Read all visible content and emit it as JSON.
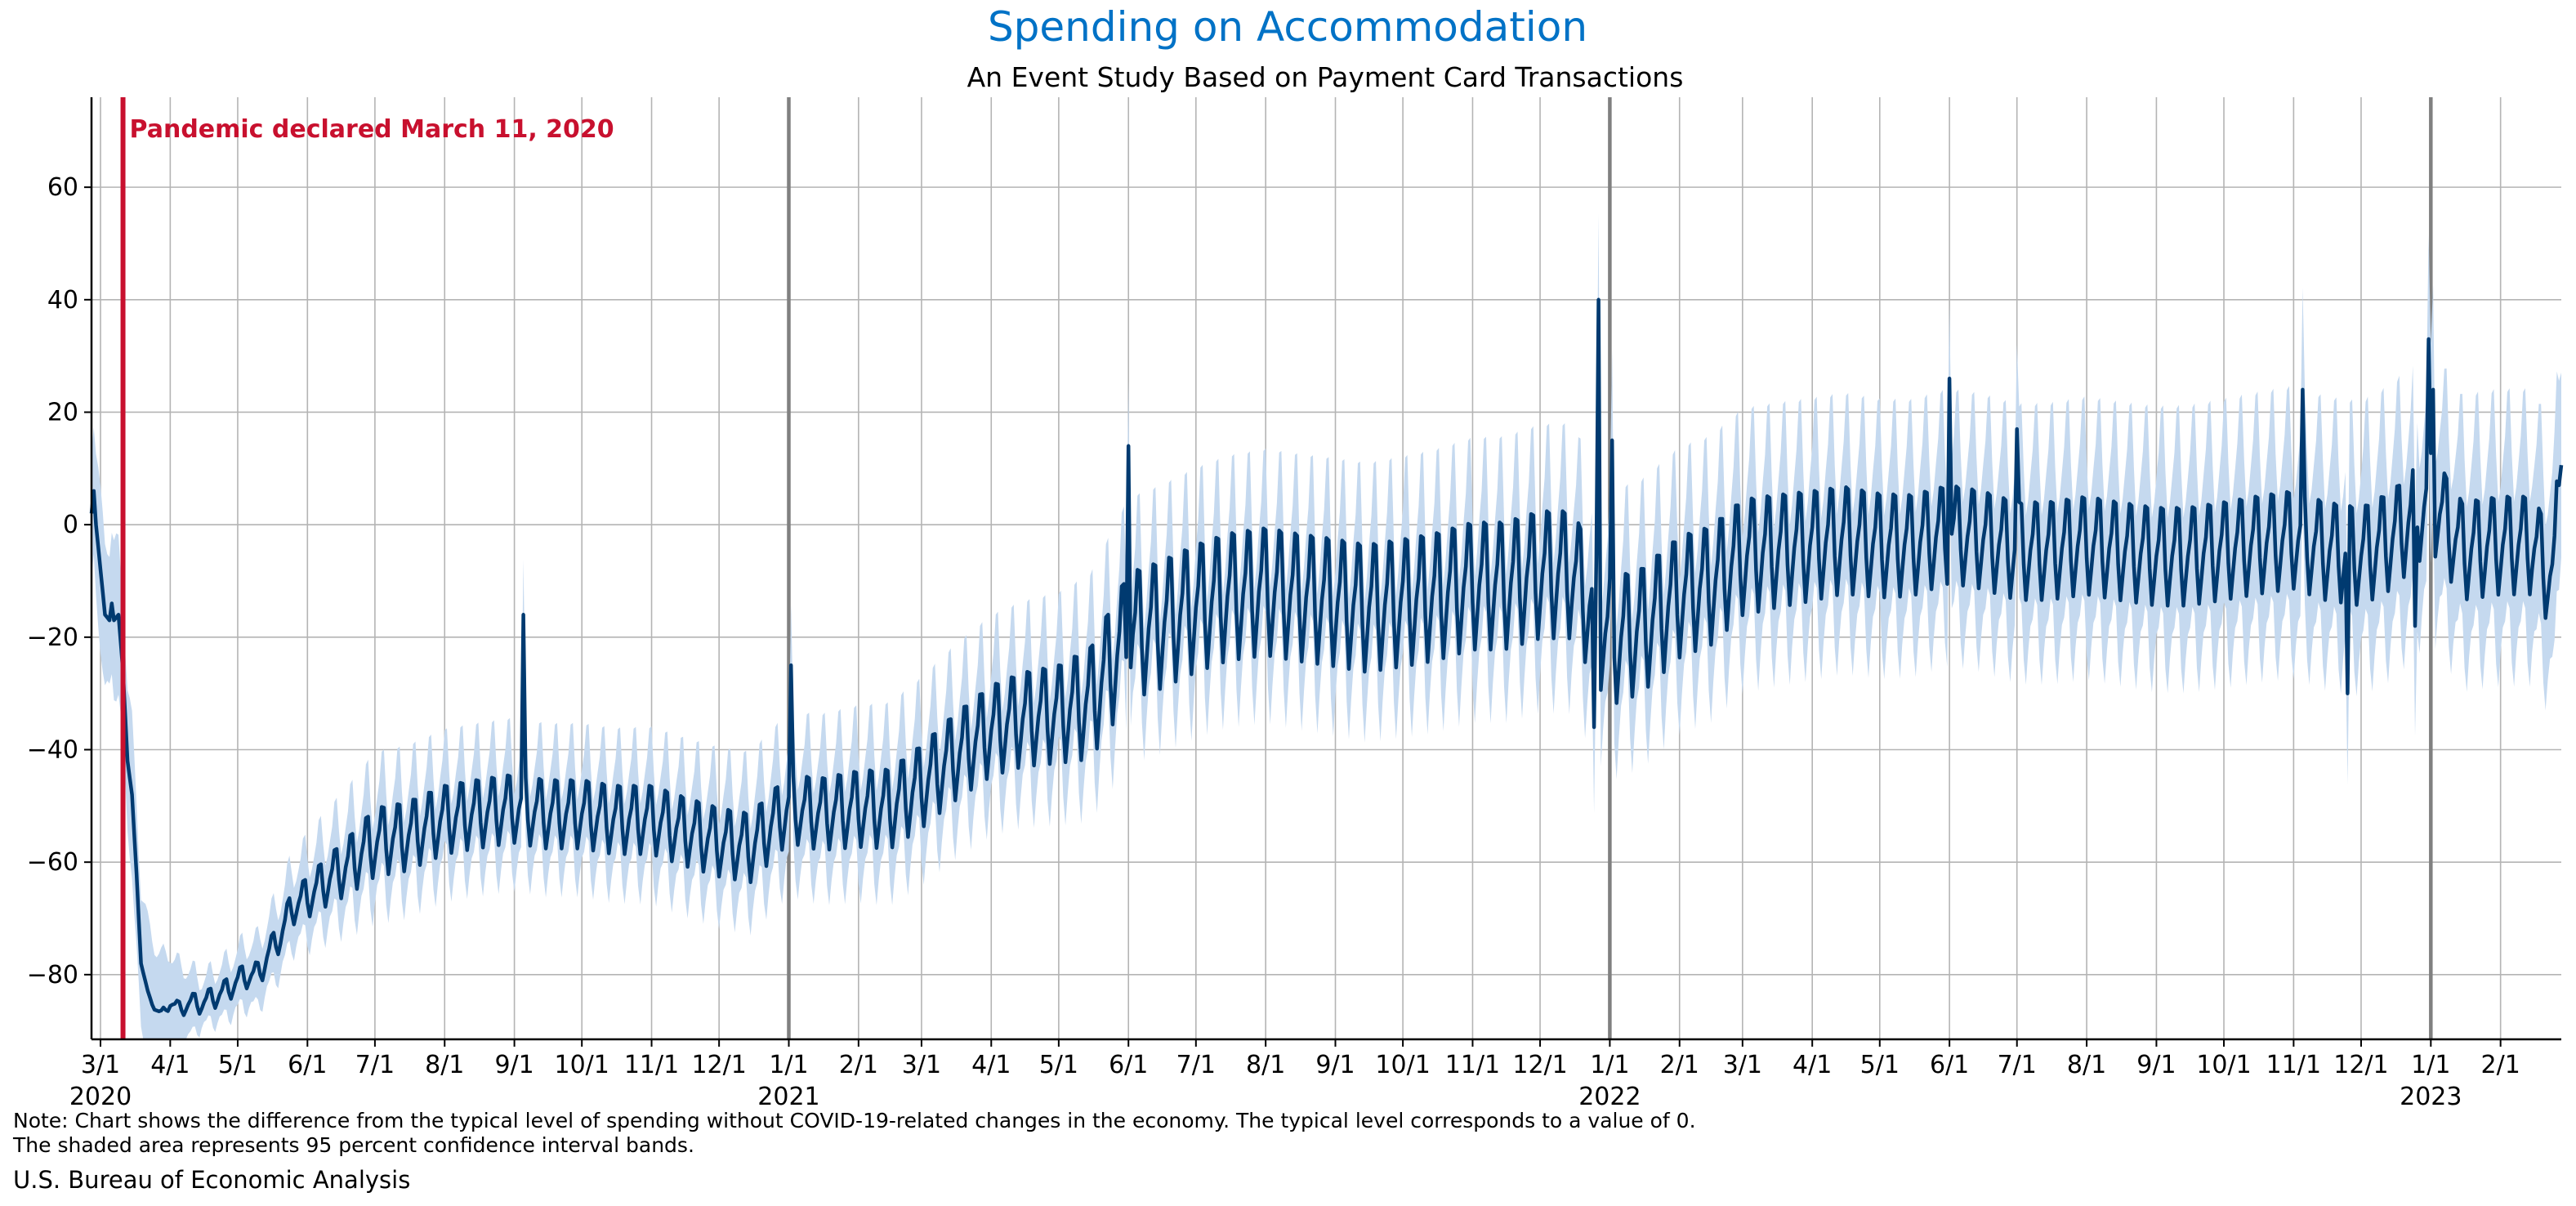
{
  "chart_data": {
    "type": "line",
    "title": "Spending on Accommodation",
    "subtitle": "An Event Study Based on Payment Card Transactions",
    "xlabel": "",
    "ylabel": "",
    "x_range": [
      "2020-02-26",
      "2023-02-28"
    ],
    "ylim": [
      -91.5,
      76
    ],
    "y_ticks": [
      -80,
      -60,
      -40,
      -20,
      0,
      20,
      40,
      60
    ],
    "grid": true,
    "legend": "none",
    "confidence_band": "95 percent",
    "annotation": {
      "text": "Pandemic declared March 11, 2020",
      "date": "2020-03-11",
      "color": "#c8102e"
    },
    "year_lines": [
      "2021-01-01",
      "2022-01-01",
      "2023-01-01"
    ],
    "x_tick_labels": [
      {
        "date": "2020-03-01",
        "label": "3/1",
        "year": "2020"
      },
      {
        "date": "2020-04-01",
        "label": "4/1"
      },
      {
        "date": "2020-05-01",
        "label": "5/1"
      },
      {
        "date": "2020-06-01",
        "label": "6/1"
      },
      {
        "date": "2020-07-01",
        "label": "7/1"
      },
      {
        "date": "2020-08-01",
        "label": "8/1"
      },
      {
        "date": "2020-09-01",
        "label": "9/1"
      },
      {
        "date": "2020-10-01",
        "label": "10/1"
      },
      {
        "date": "2020-11-01",
        "label": "11/1"
      },
      {
        "date": "2020-12-01",
        "label": "12/1"
      },
      {
        "date": "2021-01-01",
        "label": "1/1",
        "year": "2021"
      },
      {
        "date": "2021-02-01",
        "label": "2/1"
      },
      {
        "date": "2021-03-01",
        "label": "3/1"
      },
      {
        "date": "2021-04-01",
        "label": "4/1"
      },
      {
        "date": "2021-05-01",
        "label": "5/1"
      },
      {
        "date": "2021-06-01",
        "label": "6/1"
      },
      {
        "date": "2021-07-01",
        "label": "7/1"
      },
      {
        "date": "2021-08-01",
        "label": "8/1"
      },
      {
        "date": "2021-09-01",
        "label": "9/1"
      },
      {
        "date": "2021-10-01",
        "label": "10/1"
      },
      {
        "date": "2021-11-01",
        "label": "11/1"
      },
      {
        "date": "2021-12-01",
        "label": "12/1"
      },
      {
        "date": "2022-01-01",
        "label": "1/1",
        "year": "2022"
      },
      {
        "date": "2022-02-01",
        "label": "2/1"
      },
      {
        "date": "2022-03-01",
        "label": "3/1"
      },
      {
        "date": "2022-04-01",
        "label": "4/1"
      },
      {
        "date": "2022-05-01",
        "label": "5/1"
      },
      {
        "date": "2022-06-01",
        "label": "6/1"
      },
      {
        "date": "2022-07-01",
        "label": "7/1"
      },
      {
        "date": "2022-08-01",
        "label": "8/1"
      },
      {
        "date": "2022-09-01",
        "label": "9/1"
      },
      {
        "date": "2022-10-01",
        "label": "10/1"
      },
      {
        "date": "2022-11-01",
        "label": "11/1"
      },
      {
        "date": "2022-12-01",
        "label": "12/1"
      },
      {
        "date": "2023-01-01",
        "label": "1/1",
        "year": "2023"
      },
      {
        "date": "2023-02-01",
        "label": "2/1"
      }
    ],
    "series": [
      {
        "color": "#003a70",
        "band_color": "#c5d9ef",
        "band_halfwidth": [
          [
            "2020-02-26",
            13
          ],
          [
            "2020-03-20",
            13
          ],
          [
            "2020-04-15",
            4
          ],
          [
            "2020-05-15",
            6
          ],
          [
            "2020-07-01",
            9
          ],
          [
            "2020-10-01",
            9
          ],
          [
            "2021-01-01",
            10
          ],
          [
            "2021-06-01",
            12
          ],
          [
            "2021-12-20",
            14
          ],
          [
            "2022-01-01",
            14
          ],
          [
            "2022-12-20",
            17
          ],
          [
            "2023-02-28",
            17
          ]
        ],
        "points": [
          [
            "2020-02-26",
            2
          ],
          [
            "2020-02-27",
            6
          ],
          [
            "2020-02-28",
            0
          ],
          [
            "2020-03-01",
            -8
          ],
          [
            "2020-03-03",
            -16
          ],
          [
            "2020-03-05",
            -17
          ],
          [
            "2020-03-06",
            -14
          ],
          [
            "2020-03-07",
            -17
          ],
          [
            "2020-03-09",
            -16
          ],
          [
            "2020-03-11",
            -26
          ],
          [
            "2020-03-13",
            -42
          ],
          [
            "2020-03-15",
            -48
          ],
          [
            "2020-03-17",
            -62
          ],
          [
            "2020-03-19",
            -78
          ],
          [
            "2020-03-22",
            -83
          ],
          [
            "2020-03-25",
            -86
          ],
          [
            "2020-03-28",
            -87
          ],
          [
            "2020-04-01",
            -85
          ],
          [
            "2020-04-05",
            -86
          ],
          [
            "2020-04-10",
            -85
          ],
          [
            "2020-04-15",
            -85
          ],
          [
            "2020-04-20",
            -84
          ],
          [
            "2020-04-25",
            -83
          ],
          [
            "2020-05-01",
            -81
          ],
          [
            "2020-05-05",
            -80
          ],
          [
            "2020-05-10",
            -80
          ],
          [
            "2020-05-15",
            -76
          ],
          [
            "2020-05-20",
            -73
          ],
          [
            "2020-05-25",
            -68
          ],
          [
            "2020-06-01",
            -66
          ],
          [
            "2020-06-10",
            -63
          ],
          [
            "2020-06-20",
            -60
          ],
          [
            "2020-07-01",
            -56
          ],
          [
            "2020-07-15",
            -55
          ],
          [
            "2020-08-01",
            -52
          ],
          [
            "2020-08-15",
            -51
          ],
          [
            "2020-09-01",
            -50
          ],
          [
            "2020-09-15",
            -51
          ],
          [
            "2020-10-01",
            -51
          ],
          [
            "2020-10-15",
            -52
          ],
          [
            "2020-11-01",
            -52
          ],
          [
            "2020-11-15",
            -54
          ],
          [
            "2020-12-01",
            -56
          ],
          [
            "2020-12-15",
            -57
          ],
          [
            "2021-01-01",
            -50
          ],
          [
            "2021-01-15",
            -51
          ],
          [
            "2021-02-01",
            -50
          ],
          [
            "2021-02-15",
            -50
          ],
          [
            "2021-03-01",
            -46
          ],
          [
            "2021-03-15",
            -41
          ],
          [
            "2021-04-01",
            -36
          ],
          [
            "2021-04-15",
            -34
          ],
          [
            "2021-05-01",
            -33
          ],
          [
            "2021-05-15",
            -31
          ],
          [
            "2021-06-01",
            -19
          ],
          [
            "2021-06-15",
            -17
          ],
          [
            "2021-07-01",
            -14
          ],
          [
            "2021-07-15",
            -12
          ],
          [
            "2021-08-01",
            -11
          ],
          [
            "2021-08-15",
            -12
          ],
          [
            "2021-09-01",
            -13
          ],
          [
            "2021-09-15",
            -14
          ],
          [
            "2021-10-01",
            -13
          ],
          [
            "2021-10-15",
            -12
          ],
          [
            "2021-11-01",
            -10
          ],
          [
            "2021-11-15",
            -10
          ],
          [
            "2021-12-01",
            -8
          ],
          [
            "2021-12-15",
            -8
          ],
          [
            "2022-01-01",
            -20
          ],
          [
            "2022-01-15",
            -18
          ],
          [
            "2022-02-01",
            -12
          ],
          [
            "2022-02-15",
            -10
          ],
          [
            "2022-03-01",
            -5
          ],
          [
            "2022-03-15",
            -4
          ],
          [
            "2022-04-01",
            -3
          ],
          [
            "2022-04-15",
            -2
          ],
          [
            "2022-05-01",
            -3
          ],
          [
            "2022-05-15",
            -3
          ],
          [
            "2022-06-01",
            -1
          ],
          [
            "2022-06-15",
            -2
          ],
          [
            "2022-07-01",
            -4
          ],
          [
            "2022-07-15",
            -4
          ],
          [
            "2022-08-01",
            -3
          ],
          [
            "2022-08-15",
            -4
          ],
          [
            "2022-09-01",
            -5
          ],
          [
            "2022-09-15",
            -5
          ],
          [
            "2022-10-01",
            -4
          ],
          [
            "2022-10-15",
            -3
          ],
          [
            "2022-11-01",
            -2
          ],
          [
            "2022-11-15",
            -4
          ],
          [
            "2022-12-01",
            -5
          ],
          [
            "2022-12-15",
            -2
          ],
          [
            "2023-01-01",
            5
          ],
          [
            "2023-01-15",
            -4
          ],
          [
            "2023-02-01",
            -3
          ],
          [
            "2023-02-15",
            -3
          ],
          [
            "2023-02-25",
            -10
          ],
          [
            "2023-02-28",
            20
          ]
        ],
        "weekly_amplitude": [
          [
            "2020-02-26",
            0
          ],
          [
            "2020-03-20",
            0
          ],
          [
            "2020-04-10",
            2
          ],
          [
            "2020-05-20",
            3
          ],
          [
            "2020-07-01",
            7
          ],
          [
            "2020-10-01",
            7
          ],
          [
            "2021-01-01",
            7
          ],
          [
            "2021-05-01",
            10
          ],
          [
            "2021-06-01",
            13
          ],
          [
            "2021-12-31",
            13
          ],
          [
            "2022-06-01",
            10
          ],
          [
            "2023-02-28",
            10
          ]
        ],
        "spikes": [
          [
            "2020-09-05",
            -16
          ],
          [
            "2021-01-02",
            -25
          ],
          [
            "2021-06-01",
            14
          ],
          [
            "2021-12-25",
            -36
          ],
          [
            "2021-12-27",
            40
          ],
          [
            "2022-01-02",
            15
          ],
          [
            "2022-06-01",
            26
          ],
          [
            "2022-07-01",
            17
          ],
          [
            "2022-11-05",
            24
          ],
          [
            "2022-11-25",
            -30
          ],
          [
            "2022-12-25",
            -18
          ],
          [
            "2022-12-31",
            33
          ],
          [
            "2023-01-02",
            24
          ]
        ]
      }
    ]
  },
  "footer": {
    "note_line1": "Note: Chart shows the difference from the typical level of spending without COVID-19-related changes in the economy. The typical level corresponds to a value of 0.",
    "note_line2": "The shaded area represents 95 percent confidence interval bands.",
    "source": "U.S. Bureau of Economic Analysis"
  }
}
